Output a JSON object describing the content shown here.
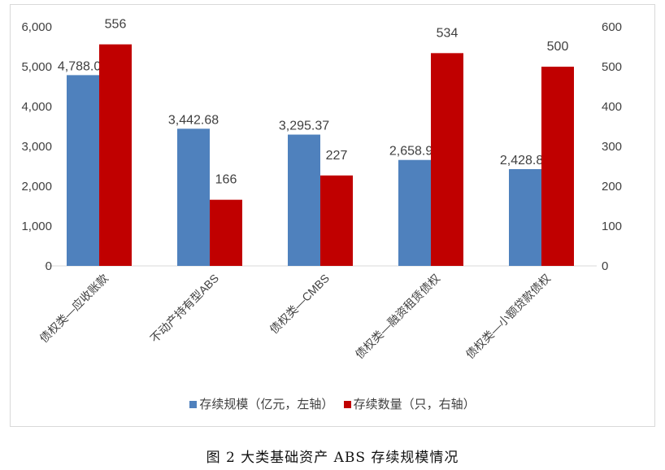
{
  "chart_data": {
    "type": "bar",
    "categories": [
      "债权类—应收账款",
      "不动产持有型ABS",
      "债权类—CMBS",
      "债权类—融资租赁债权",
      "债权类—小额贷款债权"
    ],
    "series": [
      {
        "name": "存续规模（亿元，左轴）",
        "axis": "left",
        "color": "#4f81bd",
        "values": [
          4788.07,
          3442.68,
          3295.37,
          2658.92,
          2428.82
        ],
        "labels": [
          "4,788.07",
          "3,442.68",
          "3,295.37",
          "2,658.92",
          "2,428.82"
        ]
      },
      {
        "name": "存续数量（只，右轴）",
        "axis": "right",
        "color": "#c00000",
        "values": [
          556,
          166,
          227,
          534,
          500
        ],
        "labels": [
          "556",
          "166",
          "227",
          "534",
          "500"
        ]
      }
    ],
    "left_axis": {
      "range": [
        0,
        6000
      ],
      "ticks": [
        "0",
        "1,000",
        "2,000",
        "3,000",
        "4,000",
        "5,000",
        "6,000"
      ]
    },
    "right_axis": {
      "range": [
        0,
        600
      ],
      "ticks": [
        "0",
        "100",
        "200",
        "300",
        "400",
        "500",
        "600"
      ]
    },
    "grid": false,
    "legend": "bottom"
  },
  "caption": "图 2   大类基础资产 ABS 存续规模情况"
}
